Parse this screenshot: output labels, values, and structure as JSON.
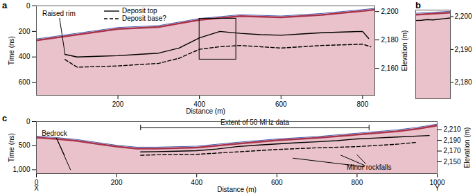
{
  "chart_data": [
    {
      "panel": "a",
      "type": "line",
      "x_label": "Distance (m)",
      "y_label": "Time (ns)",
      "y2_label": "Elevation (m)",
      "xlim": [
        0,
        830
      ],
      "xticks": [
        200,
        400,
        600,
        800
      ],
      "ylim": [
        0,
        700
      ],
      "yticks": [
        0,
        200,
        400,
        600
      ],
      "y2lim": [
        2141,
        2204
      ],
      "y2ticks": [
        {
          "value": 2160,
          "label": "2,160"
        },
        {
          "value": 2180,
          "label": "2,180"
        },
        {
          "value": 2200,
          "label": "2,200"
        }
      ],
      "legend": "top-left",
      "surface": {
        "x": [
          0,
          100,
          200,
          300,
          400,
          500,
          600,
          700,
          800,
          830
        ],
        "values": [
          270,
          225,
          180,
          165,
          110,
          80,
          90,
          70,
          40,
          30
        ],
        "color": "#a8324a"
      },
      "series": [
        {
          "name": "Deposit top",
          "color": "#000000",
          "line_style": "solid",
          "x": [
            70,
            100,
            150,
            200,
            250,
            300,
            350,
            400,
            450,
            500,
            550,
            600,
            650,
            700,
            750,
            800,
            815
          ],
          "values": [
            380,
            400,
            395,
            390,
            380,
            370,
            330,
            250,
            200,
            215,
            225,
            230,
            220,
            210,
            205,
            200,
            255
          ]
        },
        {
          "name": "Deposit base?",
          "color": "#000000",
          "line_style": "dashed",
          "x": [
            70,
            100,
            200,
            300,
            350,
            400,
            450,
            500,
            600,
            700,
            800,
            820
          ],
          "values": [
            420,
            480,
            470,
            450,
            410,
            340,
            320,
            310,
            330,
            310,
            300,
            320
          ]
        }
      ],
      "box": {
        "x": [
          400,
          490
        ],
        "y": [
          100,
          420
        ]
      },
      "annotations": [
        {
          "text": "Raised rim",
          "x": 55,
          "y": 60,
          "points": [
            [
              70,
              375
            ]
          ]
        }
      ]
    },
    {
      "panel": "b",
      "type": "line",
      "xlim": [
        400,
        490
      ],
      "ylim": [
        2175,
        2202
      ],
      "yticks": [
        {
          "value": 2180,
          "label": "2,180"
        },
        {
          "value": 2190,
          "label": "2,190"
        },
        {
          "value": 2200,
          "label": "2,200"
        }
      ],
      "tick_labels": "y",
      "surface": {
        "x": [
          400,
          430,
          460,
          490
        ],
        "values": [
          2200.6,
          2200.8,
          2201,
          2201.2
        ],
        "color": "#a8324a"
      },
      "series": [
        {
          "color": "#000000",
          "line_style": "solid",
          "x": [
            400,
            415,
            430,
            445,
            460,
            475,
            490
          ],
          "values": [
            2198.8,
            2198.9,
            2199.1,
            2199.0,
            2199.2,
            2199.4,
            2199.6
          ]
        }
      ]
    },
    {
      "panel": "c",
      "type": "line",
      "x_label": "Distance (m)",
      "y_label": "Time (ns)",
      "y2_label": "Elevation (m)",
      "xlim": [
        0,
        1000
      ],
      "xticks": [
        0,
        200,
        400,
        600,
        800,
        1000
      ],
      "ylim": [
        0,
        1080
      ],
      "yticks": [
        0,
        500,
        {
          "value": 1000,
          "label": "1,000"
        }
      ],
      "y2lim": [
        2128,
        2225
      ],
      "y2ticks": [
        {
          "value": 2150,
          "label": "2,150"
        },
        {
          "value": 2170,
          "label": "2,170"
        },
        {
          "value": 2190,
          "label": "2,190"
        },
        {
          "value": 2210,
          "label": "2,210"
        }
      ],
      "endpoints": [
        "X",
        "Y"
      ],
      "surface": {
        "x": [
          0,
          50,
          100,
          150,
          200,
          250,
          300,
          400,
          500,
          600,
          700,
          800,
          900,
          950,
          1000
        ],
        "values": [
          330,
          360,
          400,
          460,
          520,
          560,
          560,
          540,
          460,
          390,
          340,
          270,
          200,
          150,
          80
        ],
        "color": "#a8324a"
      },
      "series": [
        {
          "color": "#000000",
          "line_style": "solid",
          "x": [
            260,
            300,
            350,
            400,
            450,
            500,
            550,
            600,
            650,
            700,
            750,
            800,
            850,
            900,
            950,
            980
          ],
          "values": [
            630,
            625,
            615,
            605,
            570,
            520,
            490,
            465,
            440,
            420,
            395,
            360,
            340,
            320,
            300,
            290
          ]
        },
        {
          "color": "#000000",
          "line_style": "dashed",
          "x": [
            260,
            300,
            400,
            500,
            600,
            700,
            800,
            900,
            950
          ],
          "values": [
            700,
            690,
            680,
            630,
            580,
            545,
            520,
            470,
            430
          ]
        }
      ],
      "bracket": {
        "text": "Extent of 50 MHz data",
        "x": [
          260,
          830
        ],
        "y": 130
      },
      "annotations": [
        {
          "text": "Bedrock",
          "x": 45,
          "y": 250,
          "points": [
            [
              70,
              700
            ],
            [
              85,
              1000
            ]
          ]
        },
        {
          "text": "Minor rockfalls",
          "x": 830,
          "y": 950,
          "points": [
            [
              640,
              760
            ],
            [
              760,
              700
            ],
            [
              800,
              690
            ]
          ]
        }
      ]
    }
  ]
}
